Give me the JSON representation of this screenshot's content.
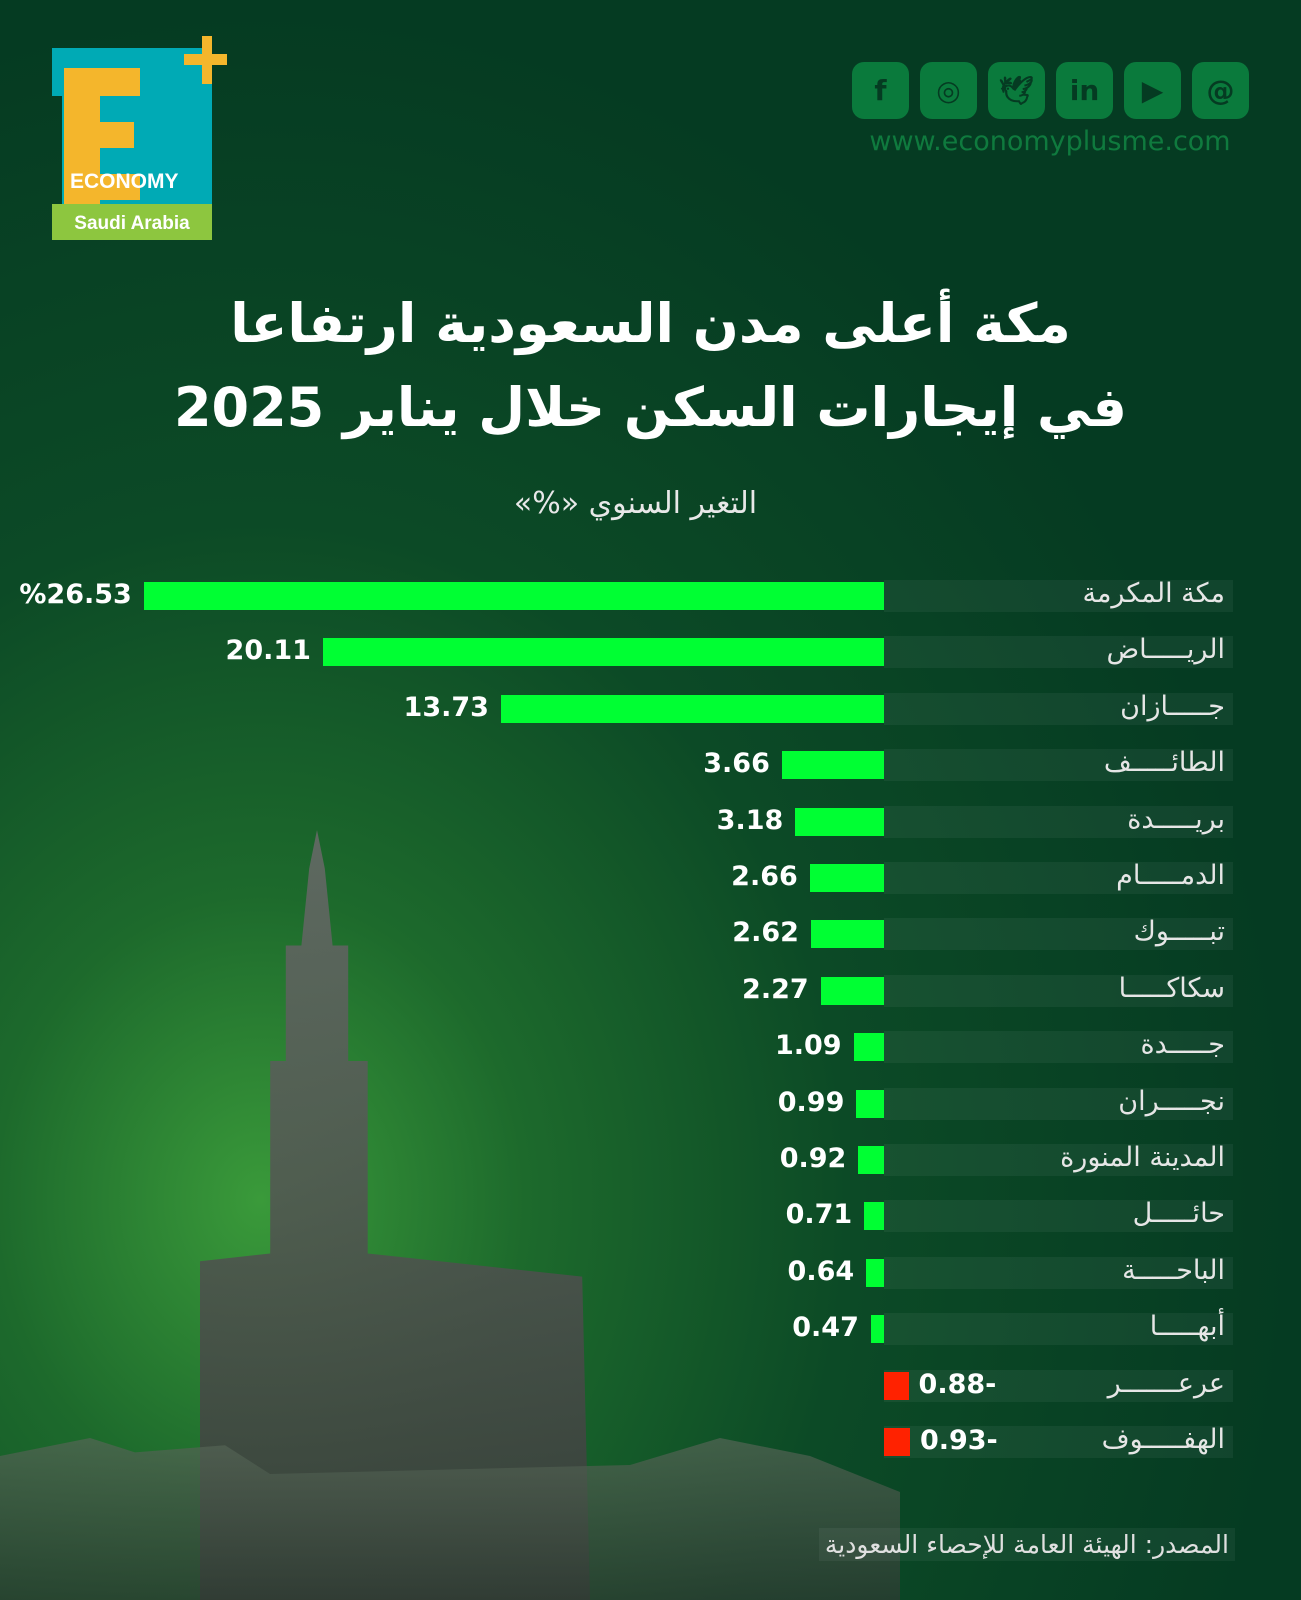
{
  "brand": {
    "logo_letter": "E",
    "logo_word": "ECONOMY",
    "logo_region": "Saudi Arabia",
    "website": "www.economyplusme.com"
  },
  "social": [
    {
      "icon": "facebook-icon",
      "glyph": "f"
    },
    {
      "icon": "instagram-icon",
      "glyph": "◎"
    },
    {
      "icon": "twitter-icon",
      "glyph": "🕊"
    },
    {
      "icon": "linkedin-icon",
      "glyph": "in"
    },
    {
      "icon": "youtube-icon",
      "glyph": "▶"
    },
    {
      "icon": "threads-icon",
      "glyph": "@"
    }
  ],
  "chart_data": {
    "type": "bar",
    "orientation": "horizontal",
    "title_line1": "مكة أعلى مدن السعودية ارتفاعا",
    "title_line2": "في إيجارات السكن خلال يناير 2025",
    "subtitle": "التغير السنوي «%»",
    "categories": [
      "مكة المكرمة",
      "الريـــــاض",
      "جـــــازان",
      "الطائـــــف",
      "بريـــــدة",
      "الدمـــــام",
      "تبـــــوك",
      "سكاكـــــا",
      "جـــــدة",
      "نجـــــران",
      "المدينة المنورة",
      "حائـــــل",
      "الباحـــــة",
      "أبهـــــا",
      "عرعـــــــر",
      "الهفـــــوف"
    ],
    "values": [
      26.53,
      20.11,
      13.73,
      3.66,
      3.18,
      2.66,
      2.62,
      2.27,
      1.09,
      0.99,
      0.92,
      0.71,
      0.64,
      0.47,
      -0.88,
      -0.93
    ],
    "labels": [
      "%26.53",
      "20.11",
      "13.73",
      "3.66",
      "3.18",
      "2.66",
      "2.62",
      "2.27",
      "1.09",
      "0.99",
      "0.92",
      "0.71",
      "0.64",
      "0.47",
      "0.88-",
      "0.93-"
    ],
    "colors": {
      "positive": "#00ff33",
      "negative": "#ff2200"
    },
    "source": "المصدر: الهيئة العامة للإحصاء السعودية"
  }
}
